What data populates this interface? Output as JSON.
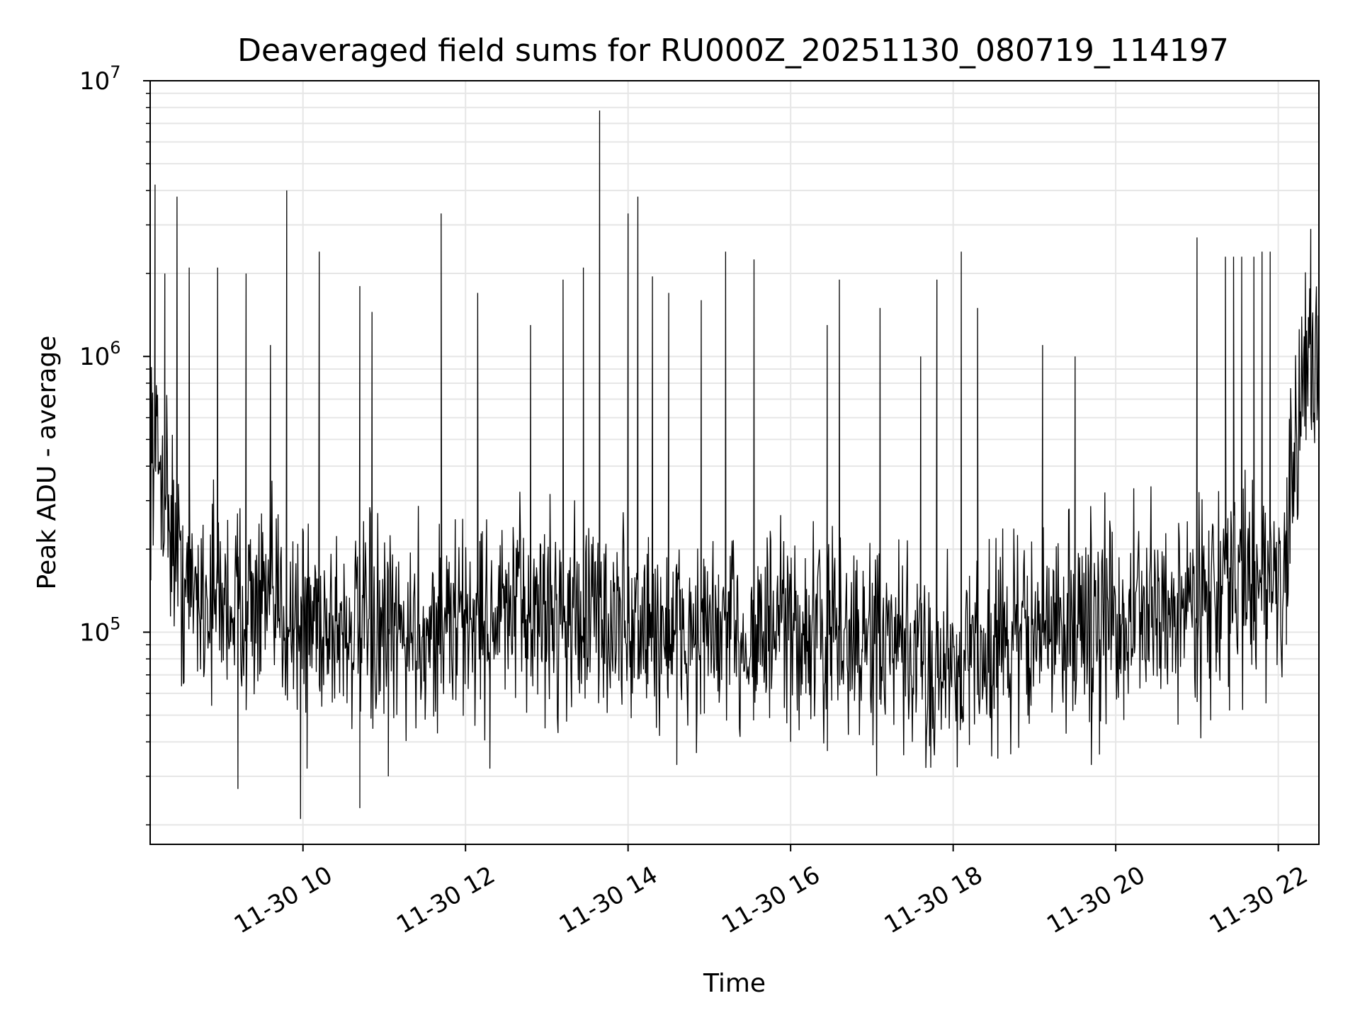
{
  "chart_data": {
    "type": "line",
    "title": "Deaveraged field sums for RU000Z_20251130_080719_114197",
    "xlabel": "Time",
    "ylabel": "Peak ADU - average",
    "yscale": "log",
    "ylim": [
      17000,
      10000000
    ],
    "xlim_hours": [
      8.12,
      22.5
    ],
    "grid": true,
    "x_ticks": [
      {
        "hour": 10,
        "label": "11-30 10"
      },
      {
        "hour": 12,
        "label": "11-30 12"
      },
      {
        "hour": 14,
        "label": "11-30 14"
      },
      {
        "hour": 16,
        "label": "11-30 16"
      },
      {
        "hour": 18,
        "label": "11-30 18"
      },
      {
        "hour": 20,
        "label": "11-30 20"
      },
      {
        "hour": 22,
        "label": "11-30 22"
      }
    ],
    "y_ticks": [
      {
        "value": 100000,
        "base": "10",
        "exp": "5"
      },
      {
        "value": 1000000,
        "base": "10",
        "exp": "6"
      },
      {
        "value": 10000000,
        "base": "10",
        "exp": "7"
      }
    ],
    "series": [
      {
        "name": "Deaveraged field sum",
        "color": "#000000",
        "baseline": [
          [
            8.12,
            500000
          ],
          [
            8.3,
            350000
          ],
          [
            8.5,
            150000
          ],
          [
            9.0,
            130000
          ],
          [
            10.0,
            115000
          ],
          [
            11.0,
            95000
          ],
          [
            12.0,
            110000
          ],
          [
            13.0,
            120000
          ],
          [
            14.0,
            105000
          ],
          [
            15.0,
            95000
          ],
          [
            16.0,
            100000
          ],
          [
            17.0,
            90000
          ],
          [
            17.7,
            75000
          ],
          [
            18.5,
            90000
          ],
          [
            19.5,
            110000
          ],
          [
            20.5,
            115000
          ],
          [
            21.5,
            150000
          ],
          [
            22.1,
            160000
          ],
          [
            22.3,
            900000
          ],
          [
            22.5,
            1000000
          ]
        ],
        "spikes": [
          [
            8.18,
            4200000
          ],
          [
            8.3,
            2000000
          ],
          [
            8.45,
            3800000
          ],
          [
            8.6,
            2100000
          ],
          [
            8.95,
            2100000
          ],
          [
            9.3,
            2000000
          ],
          [
            9.6,
            1100000
          ],
          [
            9.8,
            4000000
          ],
          [
            10.2,
            2400000
          ],
          [
            10.7,
            1800000
          ],
          [
            10.85,
            1450000
          ],
          [
            11.7,
            3300000
          ],
          [
            12.15,
            1700000
          ],
          [
            12.8,
            1300000
          ],
          [
            13.2,
            1900000
          ],
          [
            13.45,
            2100000
          ],
          [
            13.65,
            7800000
          ],
          [
            14.0,
            3300000
          ],
          [
            14.12,
            3800000
          ],
          [
            14.3,
            1950000
          ],
          [
            14.5,
            1700000
          ],
          [
            14.9,
            1600000
          ],
          [
            15.2,
            2400000
          ],
          [
            15.55,
            2250000
          ],
          [
            16.45,
            1300000
          ],
          [
            16.6,
            1900000
          ],
          [
            17.1,
            1500000
          ],
          [
            17.6,
            1000000
          ],
          [
            17.8,
            1900000
          ],
          [
            18.1,
            2400000
          ],
          [
            18.3,
            1500000
          ],
          [
            19.1,
            1100000
          ],
          [
            19.5,
            1000000
          ],
          [
            21.0,
            2700000
          ],
          [
            21.35,
            2300000
          ],
          [
            21.45,
            2300000
          ],
          [
            21.55,
            2300000
          ],
          [
            21.7,
            2300000
          ],
          [
            21.8,
            2400000
          ],
          [
            21.9,
            2400000
          ],
          [
            22.4,
            2900000
          ]
        ],
        "dips": [
          [
            9.2,
            27000
          ],
          [
            9.97,
            21000
          ],
          [
            10.05,
            32000
          ],
          [
            10.7,
            23000
          ],
          [
            11.05,
            30000
          ],
          [
            12.3,
            32000
          ],
          [
            14.6,
            33000
          ],
          [
            16.0,
            40000
          ],
          [
            18.2,
            39000
          ],
          [
            19.7,
            33000
          ],
          [
            19.8,
            36000
          ],
          [
            20.1,
            48000
          ],
          [
            21.4,
            52000
          ],
          [
            22.1,
            90000
          ]
        ]
      }
    ]
  }
}
